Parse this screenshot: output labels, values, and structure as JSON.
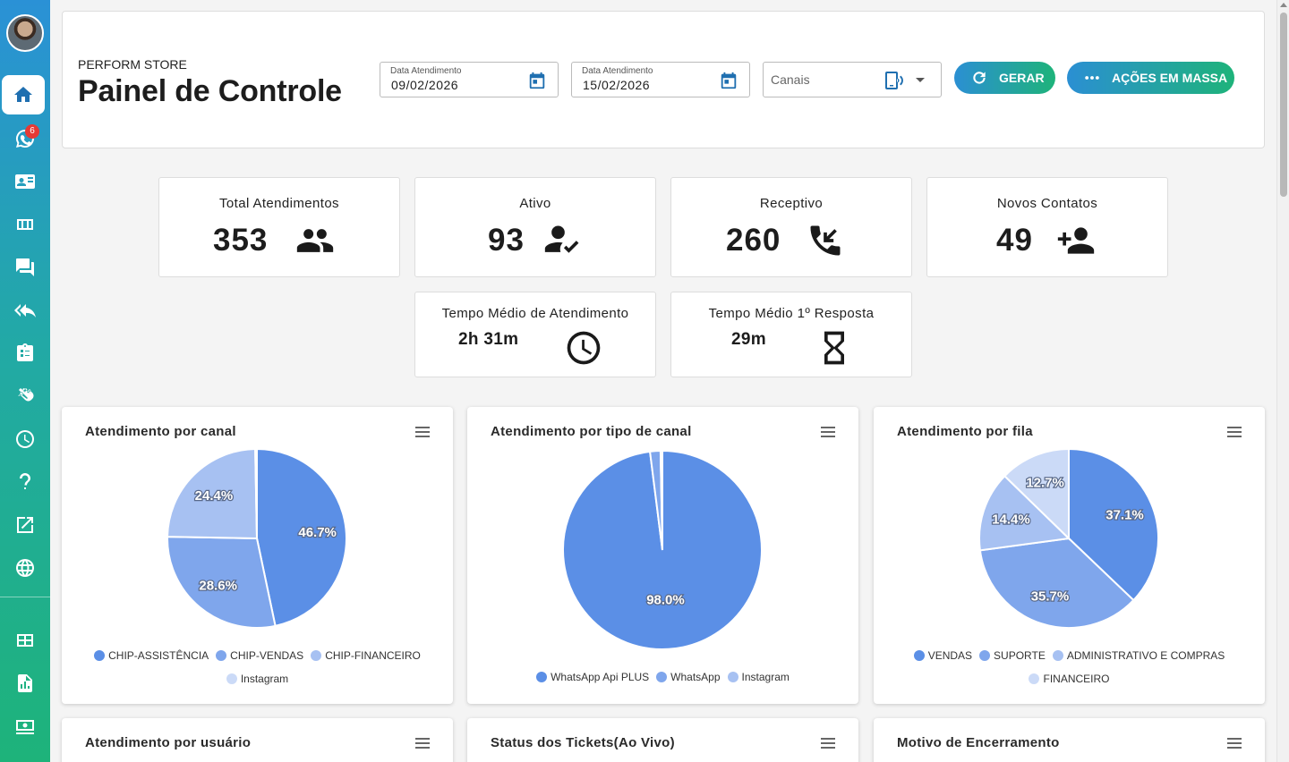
{
  "sidebar": {
    "badge": "6",
    "items": [
      {
        "name": "home"
      },
      {
        "name": "whatsapp"
      },
      {
        "name": "contacts"
      },
      {
        "name": "kanban"
      },
      {
        "name": "chats"
      },
      {
        "name": "quick-replies"
      },
      {
        "name": "tasks"
      },
      {
        "name": "clap"
      },
      {
        "name": "schedule"
      },
      {
        "name": "help"
      },
      {
        "name": "external-link"
      },
      {
        "name": "globe"
      },
      {
        "name": "dashboard"
      },
      {
        "name": "reports"
      },
      {
        "name": "finance"
      }
    ]
  },
  "header": {
    "store": "PERFORM STORE",
    "title": "Painel de Controle",
    "date_from": {
      "label": "Data Atendimento",
      "value": "09/02/2026"
    },
    "date_to": {
      "label": "Data Atendimento",
      "value": "15/02/2026"
    },
    "channels_placeholder": "Canais",
    "btn_generate": "GERAR",
    "btn_bulk": "AÇÕES EM MASSA"
  },
  "stats": {
    "total": {
      "title": "Total Atendimentos",
      "value": "353"
    },
    "active": {
      "title": "Ativo",
      "value": "93"
    },
    "receptive": {
      "title": "Receptivo",
      "value": "260"
    },
    "new_contacts": {
      "title": "Novos Contatos",
      "value": "49"
    },
    "avg_time": {
      "title": "Tempo Médio de Atendimento",
      "value": "2h 31m"
    },
    "first_response": {
      "title": "Tempo Médio 1º Resposta",
      "value": "29m"
    }
  },
  "colors": {
    "c1": "#5b8fe6",
    "c2": "#7fa6ec",
    "c3": "#a7c1f2",
    "c4": "#cbdaf7"
  },
  "chart_data": [
    {
      "type": "pie",
      "title": "Atendimento por canal",
      "labels": [
        "CHIP-ASSISTÊNCIA",
        "CHIP-VENDAS",
        "CHIP-FINANCEIRO",
        "Instagram"
      ],
      "values": [
        46.7,
        28.6,
        24.4,
        0.3
      ],
      "value_labels": [
        "46.7%",
        "28.6%",
        "24.4%",
        ""
      ]
    },
    {
      "type": "pie",
      "title": "Atendimento por tipo de canal",
      "labels": [
        "WhatsApp Api PLUS",
        "WhatsApp",
        "Instagram"
      ],
      "values": [
        98.0,
        1.7,
        0.3
      ],
      "value_labels": [
        "98.0%",
        "",
        ""
      ]
    },
    {
      "type": "pie",
      "title": "Atendimento por fila",
      "labels": [
        "VENDAS",
        "SUPORTE",
        "ADMINISTRATIVO E COMPRAS",
        "FINANCEIRO"
      ],
      "values": [
        37.1,
        35.7,
        14.4,
        12.7
      ],
      "value_labels": [
        "37.1%",
        "35.7%",
        "14.4%",
        "12.7%"
      ]
    }
  ],
  "lower_cards": [
    "Atendimento por usuário",
    "Status dos Tickets(Ao Vivo)",
    "Motivo de Encerramento"
  ]
}
